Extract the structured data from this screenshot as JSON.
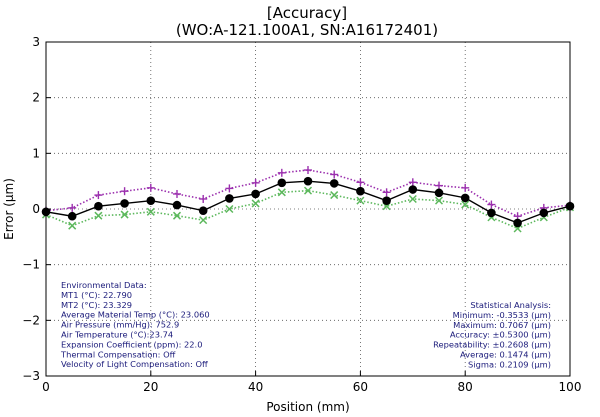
{
  "chart_data": {
    "type": "line",
    "title": "[Accuracy]",
    "subtitle": "(WO:A-121.100A1, SN:A16172401)",
    "xlabel": "Position (mm)",
    "ylabel": "Error (μm)",
    "xlim": [
      0,
      100
    ],
    "ylim": [
      -3,
      3
    ],
    "xticks": [
      "0",
      "20",
      "40",
      "60",
      "80",
      "100"
    ],
    "yticks": [
      "−3",
      "−2",
      "−1",
      "0",
      "1",
      "2",
      "3"
    ],
    "grid": true,
    "x": [
      0,
      5,
      10,
      15,
      20,
      25,
      30,
      35,
      40,
      45,
      50,
      55,
      60,
      65,
      70,
      75,
      80,
      85,
      90,
      95,
      100
    ],
    "series": [
      {
        "color": "#000000",
        "marker": "circle",
        "style": "solid",
        "values": [
          -0.05,
          -0.13,
          0.05,
          0.1,
          0.15,
          0.07,
          -0.03,
          0.19,
          0.27,
          0.47,
          0.5,
          0.46,
          0.32,
          0.15,
          0.35,
          0.29,
          0.2,
          -0.07,
          -0.25,
          -0.07,
          0.05
        ]
      },
      {
        "color": "#9b2fae",
        "marker": "plus",
        "style": "dotted",
        "values": [
          -0.03,
          0.02,
          0.25,
          0.32,
          0.38,
          0.27,
          0.18,
          0.37,
          0.47,
          0.65,
          0.7,
          0.62,
          0.48,
          0.3,
          0.48,
          0.42,
          0.38,
          0.08,
          -0.13,
          0.02,
          0.07
        ]
      },
      {
        "color": "#5cb85c",
        "marker": "x",
        "style": "dotted",
        "values": [
          -0.1,
          -0.3,
          -0.12,
          -0.1,
          -0.05,
          -0.12,
          -0.2,
          0.0,
          0.1,
          0.3,
          0.33,
          0.25,
          0.15,
          0.05,
          0.18,
          0.15,
          0.08,
          -0.15,
          -0.35,
          -0.15,
          0.03
        ]
      }
    ],
    "annotations": {
      "environmental": [
        "Environmental Data:",
        "MT1 (°C): 22.790",
        "MT2 (°C): 23.329",
        "Average Material Temp (°C): 23.060",
        "Air Pressure (mm/Hg): 752.9",
        "Air Temperature (°C):23.74",
        "Expansion Coefficient (ppm): 22.0",
        "Thermal Compensation: Off",
        "Velocity of Light Compensation: Off"
      ],
      "statistics": [
        "Statistical Analysis:",
        "Minimum: -0.3533 (μm)",
        "Maximum: 0.7067 (μm)",
        "Accuracy: ±0.5300 (μm)",
        "Repeatability: ±0.2608 (μm)",
        "Average: 0.1474 (μm)",
        "Sigma: 0.2109 (μm)"
      ]
    }
  }
}
